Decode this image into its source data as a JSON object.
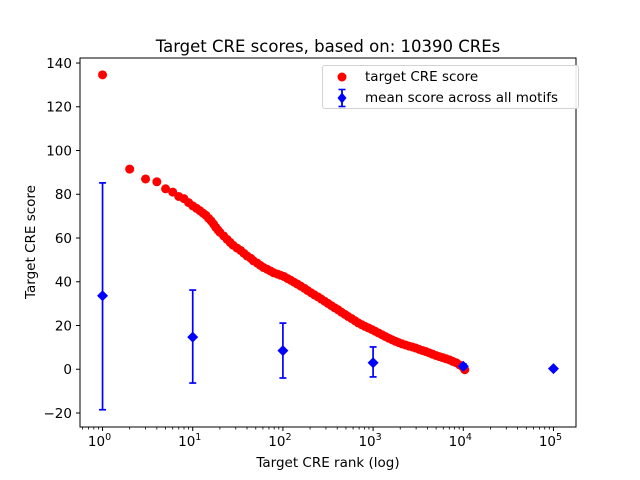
{
  "chart_data": {
    "type": "scatter",
    "title": "Target CRE scores, based on: 10390 CREs",
    "xlabel": "Target CRE rank (log)",
    "ylabel": "Target CRE score",
    "x_axis": {
      "scale": "log",
      "tick_exponents": [
        0,
        1,
        2,
        3,
        4,
        5
      ],
      "lim_log10": [
        -0.25,
        5.25
      ]
    },
    "y_axis": {
      "ticks": [
        -20,
        0,
        20,
        40,
        60,
        80,
        100,
        120,
        140
      ],
      "lim": [
        -26.4,
        142.3
      ]
    },
    "grid": false,
    "legend_position": "upper right",
    "series": [
      {
        "name": "target CRE score",
        "marker": "circle",
        "color": "#ff0000",
        "points": [
          [
            1,
            134.6
          ],
          [
            2,
            91.5
          ],
          [
            3,
            87.0
          ],
          [
            4,
            85.7
          ],
          [
            5,
            82.5
          ],
          [
            6,
            81.0
          ],
          [
            7,
            79.0
          ],
          [
            8,
            78.0
          ],
          [
            9,
            76.2
          ],
          [
            10,
            74.7
          ],
          [
            11,
            73.6
          ],
          [
            12,
            72.5
          ],
          [
            13,
            71.4
          ],
          [
            14,
            70.4
          ],
          [
            15,
            69.0
          ],
          [
            16,
            67.8
          ],
          [
            17,
            66.4
          ],
          [
            18,
            64.9
          ],
          [
            19,
            63.7
          ],
          [
            20,
            62.6
          ],
          [
            22,
            61.0
          ],
          [
            24,
            59.4
          ],
          [
            26,
            58.0
          ],
          [
            28,
            56.7
          ],
          [
            31,
            55.4
          ],
          [
            34,
            54.3
          ],
          [
            37,
            53.0
          ],
          [
            40,
            51.8
          ],
          [
            44,
            50.7
          ],
          [
            47,
            49.6
          ],
          [
            52,
            48.5
          ],
          [
            56,
            47.5
          ],
          [
            61,
            46.5
          ],
          [
            67,
            45.7
          ],
          [
            73,
            44.9
          ],
          [
            79,
            44.1
          ],
          [
            87,
            43.5
          ],
          [
            94,
            43.0
          ],
          [
            103,
            42.4
          ],
          [
            112,
            41.5
          ],
          [
            122,
            40.7
          ],
          [
            133,
            39.8
          ],
          [
            145,
            38.9
          ],
          [
            158,
            38.0
          ],
          [
            173,
            37.0
          ],
          [
            188,
            36.0
          ],
          [
            205,
            35.0
          ],
          [
            224,
            34.0
          ],
          [
            244,
            33.1
          ],
          [
            266,
            32.1
          ],
          [
            290,
            31.1
          ],
          [
            316,
            30.1
          ],
          [
            344,
            29.1
          ],
          [
            375,
            28.1
          ],
          [
            409,
            27.2
          ],
          [
            445,
            26.1
          ],
          [
            486,
            25.1
          ],
          [
            529,
            24.1
          ],
          [
            577,
            23.2
          ],
          [
            629,
            22.2
          ],
          [
            685,
            21.2
          ],
          [
            747,
            20.4
          ],
          [
            814,
            19.6
          ],
          [
            888,
            18.9
          ],
          [
            967,
            18.2
          ],
          [
            1054,
            17.4
          ],
          [
            1149,
            16.6
          ],
          [
            1253,
            15.8
          ],
          [
            1365,
            15.0
          ],
          [
            1488,
            14.2
          ],
          [
            1622,
            13.5
          ],
          [
            1768,
            12.8
          ],
          [
            1927,
            12.2
          ],
          [
            2101,
            11.6
          ],
          [
            2290,
            11.1
          ],
          [
            2496,
            10.6
          ],
          [
            2721,
            10.2
          ],
          [
            2966,
            9.7
          ],
          [
            3233,
            9.1
          ],
          [
            3523,
            8.6
          ],
          [
            3841,
            8.1
          ],
          [
            4186,
            7.5
          ],
          [
            4563,
            6.9
          ],
          [
            4974,
            6.3
          ],
          [
            5421,
            5.8
          ],
          [
            5909,
            5.3
          ],
          [
            6441,
            4.8
          ],
          [
            7021,
            4.3
          ],
          [
            7652,
            3.6
          ],
          [
            8341,
            3.0
          ],
          [
            9092,
            2.0
          ],
          [
            9910,
            1.0
          ],
          [
            10390,
            -0.2
          ]
        ]
      },
      {
        "name": "mean score across all motifs",
        "marker": "diamond",
        "color": "#0000ff",
        "error_bars": true,
        "points": [
          {
            "x": 1,
            "y": 33.6,
            "lo": -18.5,
            "hi": 85.2
          },
          {
            "x": 10,
            "y": 14.7,
            "lo": -6.3,
            "hi": 36.2
          },
          {
            "x": 100,
            "y": 8.5,
            "lo": -4.0,
            "hi": 21.1
          },
          {
            "x": 1000,
            "y": 3.0,
            "lo": -3.5,
            "hi": 10.2
          },
          {
            "x": 10000,
            "y": 1.4,
            "lo": 0.4,
            "hi": 2.4
          },
          {
            "x": 100000,
            "y": 0.3,
            "lo": 0.0,
            "hi": 0.6
          }
        ]
      }
    ]
  }
}
